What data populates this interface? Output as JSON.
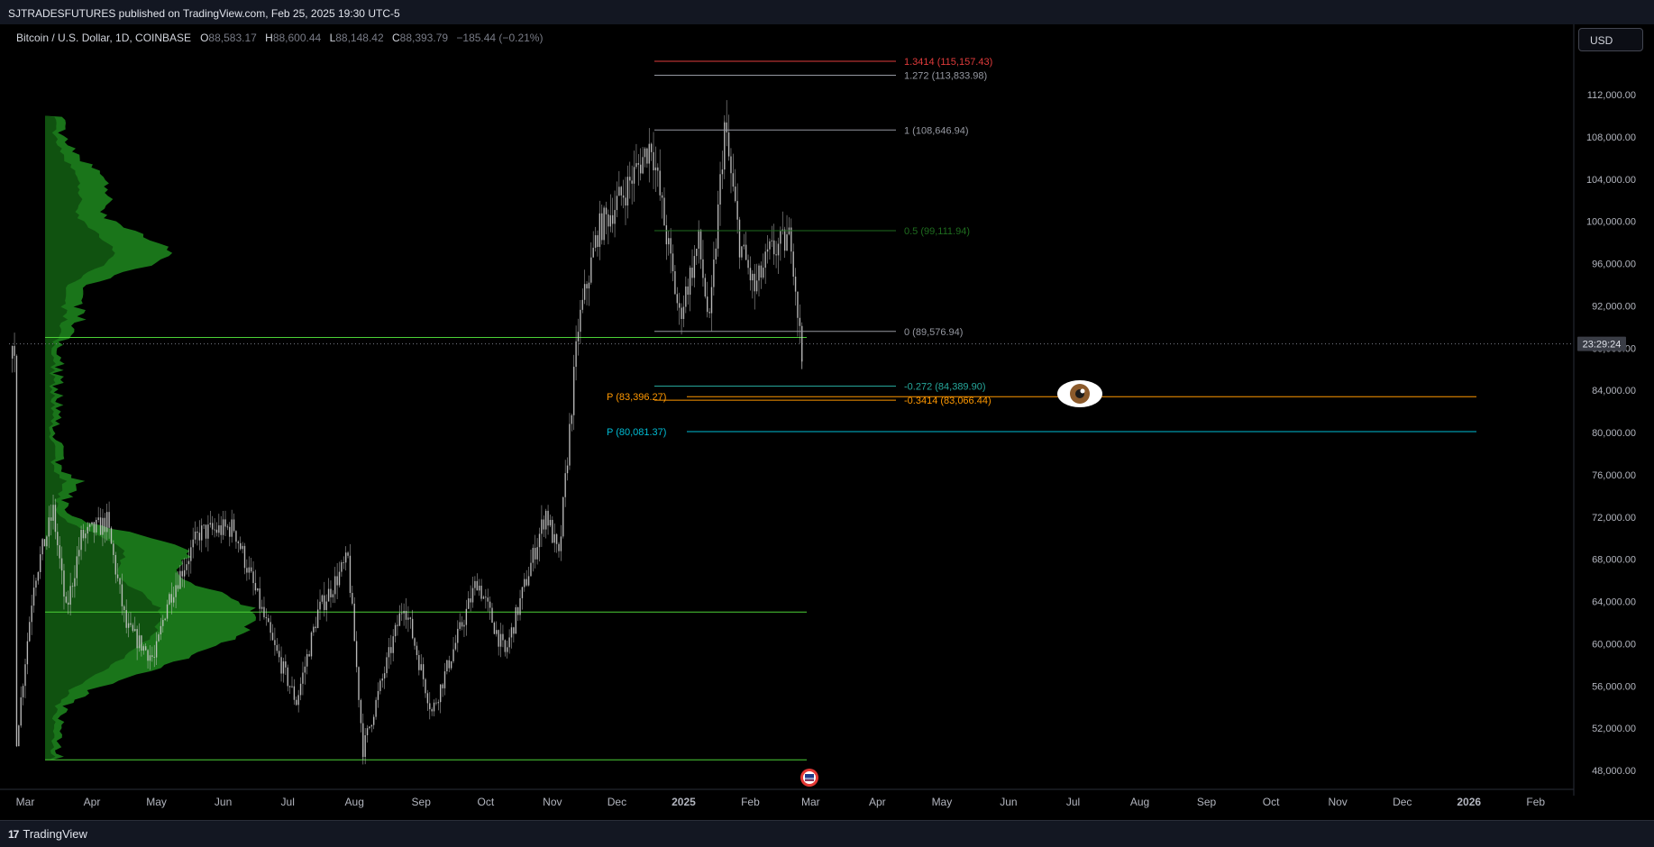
{
  "header": {
    "published": "SJTRADESFUTURES published on TradingView.com, Feb 25, 2025 19:30 UTC-5"
  },
  "legend": {
    "symbol": "Bitcoin / U.S. Dollar, 1D, COINBASE",
    "open_label": "O",
    "open": "88,583.17",
    "high_label": "H",
    "high": "88,600.44",
    "low_label": "L",
    "low": "88,148.42",
    "close_label": "C",
    "close": "88,393.79",
    "change": "−185.44 (−0.21%)"
  },
  "currency_button": "USD",
  "countdown": "23:29:24",
  "footer": {
    "brand": "TradingView"
  },
  "colors": {
    "candle": "#c8c8c8",
    "profile": "#1f8a1f",
    "profile_light": "#3fbf3f",
    "poc": "#4cd137",
    "fib_red": "#e03b3b",
    "fib_gray": "#9598a1",
    "fib_green": "#1e6b1e",
    "fib_teal": "#26a69a",
    "fib_orange": "#ff9800",
    "pivot_blue": "#00bcd4"
  },
  "chart_data": {
    "type": "candlestick",
    "symbol": "BTCUSD",
    "timeframe": "1D",
    "ylim": [
      46000,
      116500
    ],
    "price_ticks": [
      48000,
      52000,
      56000,
      60000,
      64000,
      68000,
      72000,
      76000,
      80000,
      84000,
      88000,
      92000,
      96000,
      100000,
      104000,
      108000,
      112000
    ],
    "price_tick_labels": [
      "48,000.00",
      "52,000.00",
      "56,000.00",
      "60,000.00",
      "64,000.00",
      "68,000.00",
      "72,000.00",
      "76,000.00",
      "80,000.00",
      "84,000.00",
      "88,000.00",
      "92,000.00",
      "96,000.00",
      "100,000.00",
      "104,000.00",
      "108,000.00",
      "112,000.00"
    ],
    "time_axis": [
      {
        "label": "Mar",
        "date": "2024-03-01"
      },
      {
        "label": "Apr",
        "date": "2024-04-01"
      },
      {
        "label": "May",
        "date": "2024-05-01"
      },
      {
        "label": "Jun",
        "date": "2024-06-01"
      },
      {
        "label": "Jul",
        "date": "2024-07-01"
      },
      {
        "label": "Aug",
        "date": "2024-08-01"
      },
      {
        "label": "Sep",
        "date": "2024-09-01"
      },
      {
        "label": "Oct",
        "date": "2024-10-01"
      },
      {
        "label": "Nov",
        "date": "2024-11-01"
      },
      {
        "label": "Dec",
        "date": "2024-12-01"
      },
      {
        "label": "2025",
        "date": "2025-01-01",
        "bold": true
      },
      {
        "label": "Feb",
        "date": "2025-02-01"
      },
      {
        "label": "Mar",
        "date": "2025-03-01"
      },
      {
        "label": "Apr",
        "date": "2025-04-01"
      },
      {
        "label": "May",
        "date": "2025-05-01"
      },
      {
        "label": "Jun",
        "date": "2025-06-01"
      },
      {
        "label": "Jul",
        "date": "2025-07-01"
      },
      {
        "label": "Aug",
        "date": "2025-08-01"
      },
      {
        "label": "Sep",
        "date": "2025-09-01"
      },
      {
        "label": "Oct",
        "date": "2025-10-01"
      },
      {
        "label": "Nov",
        "date": "2025-11-01"
      },
      {
        "label": "Dec",
        "date": "2025-12-01"
      },
      {
        "label": "2026",
        "date": "2026-01-01",
        "bold": true
      },
      {
        "label": "Feb",
        "date": "2026-02-01"
      }
    ],
    "price_path": [
      [
        "2024-02-26",
        51000
      ],
      [
        "2024-03-05",
        66000
      ],
      [
        "2024-03-14",
        72500
      ],
      [
        "2024-03-20",
        63000
      ],
      [
        "2024-03-27",
        70000
      ],
      [
        "2024-04-08",
        71500
      ],
      [
        "2024-04-17",
        61500
      ],
      [
        "2024-04-30",
        58500
      ],
      [
        "2024-05-06",
        64000
      ],
      [
        "2024-05-21",
        70500
      ],
      [
        "2024-06-06",
        71000
      ],
      [
        "2024-06-24",
        60000
      ],
      [
        "2024-07-05",
        54500
      ],
      [
        "2024-07-15",
        63000
      ],
      [
        "2024-07-29",
        68000
      ],
      [
        "2024-08-05",
        50000
      ],
      [
        "2024-08-24",
        64000
      ],
      [
        "2024-09-06",
        53500
      ],
      [
        "2024-09-27",
        66000
      ],
      [
        "2024-10-10",
        59000
      ],
      [
        "2024-10-29",
        72500
      ],
      [
        "2024-11-04",
        68000
      ],
      [
        "2024-11-13",
        90000
      ],
      [
        "2024-11-22",
        99000
      ],
      [
        "2024-12-05",
        103000
      ],
      [
        "2024-12-17",
        107500
      ],
      [
        "2024-12-30",
        91000
      ],
      [
        "2025-01-08",
        98000
      ],
      [
        "2025-01-13",
        90000
      ],
      [
        "2025-01-20",
        109000
      ],
      [
        "2025-01-27",
        98000
      ],
      [
        "2025-02-03",
        93500
      ],
      [
        "2025-02-10",
        97000
      ],
      [
        "2025-02-20",
        98500
      ],
      [
        "2025-02-25",
        87000
      ]
    ],
    "fib_levels": [
      {
        "label": "1.3414 (115,157.43)",
        "price": 115157.43,
        "color": "#e03b3b"
      },
      {
        "label": "1.272 (113,833.98)",
        "price": 113833.98,
        "color": "#9598a1"
      },
      {
        "label": "1 (108,646.94)",
        "price": 108646.94,
        "color": "#9598a1"
      },
      {
        "label": "0.5 (99,111.94)",
        "price": 99111.94,
        "color": "#1e6b1e"
      },
      {
        "label": "0 (89,576.94)",
        "price": 89576.94,
        "color": "#9598a1"
      },
      {
        "label": "-0.272 (84,389.90)",
        "price": 84389.9,
        "color": "#26a69a"
      },
      {
        "label": "-0.3414 (83,066.44)",
        "price": 83066.44,
        "color": "#ff9800"
      }
    ],
    "pivots": [
      {
        "label": "P (83,396.27)",
        "price": 83396.27,
        "color": "#ff9800"
      },
      {
        "label": "P (80,081.37)",
        "price": 80081.37,
        "color": "#00bcd4"
      }
    ],
    "volume_profile_poc": [
      89000,
      63000
    ],
    "volume_profile_range": [
      49000,
      110000
    ],
    "current_price": 88393.79,
    "grid": false
  }
}
